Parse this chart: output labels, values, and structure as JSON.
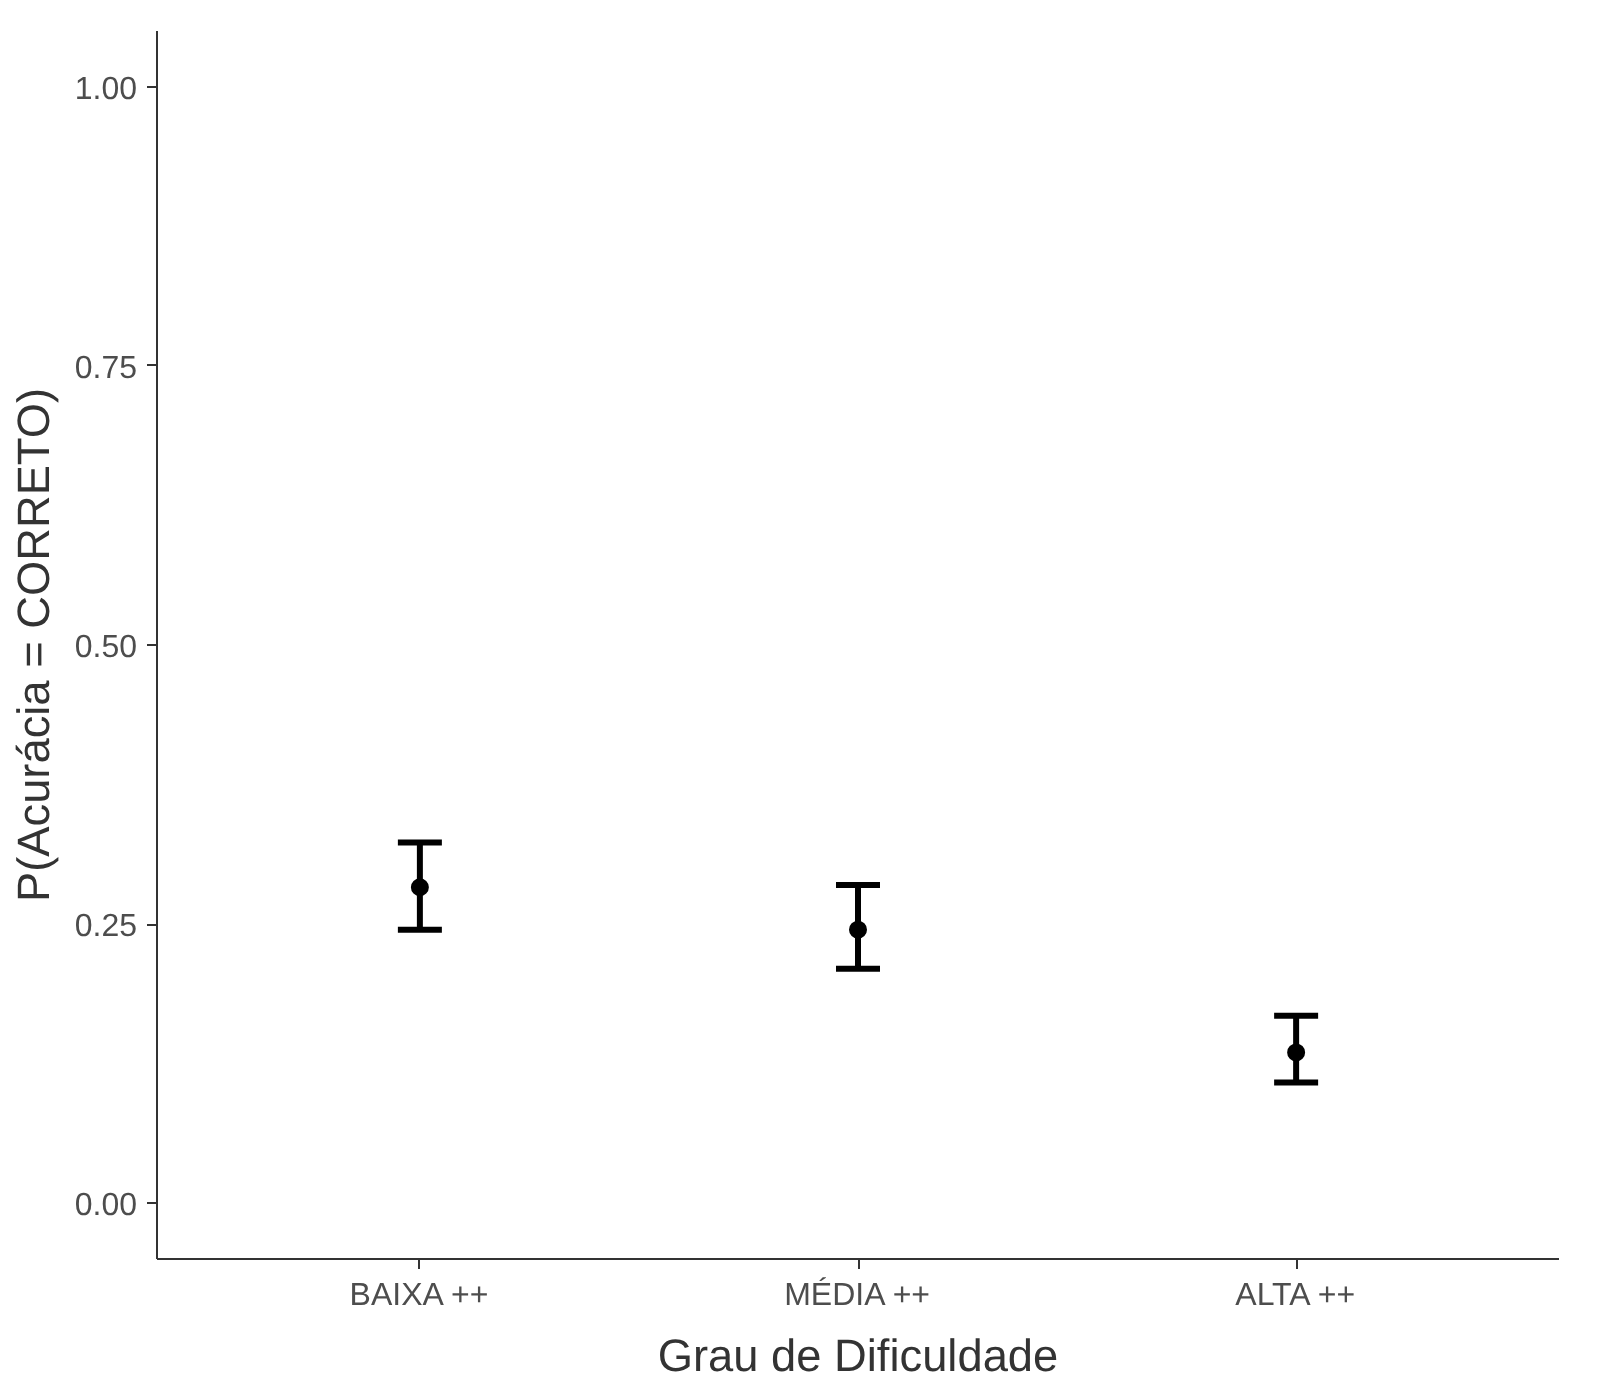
{
  "chart_data": {
    "type": "scatter",
    "xlabel": "Grau de Dificuldade",
    "ylabel": "P(Acurácia = CORRETO)",
    "categories": [
      "BAIXA ++",
      "MÉDIA ++",
      "ALTA ++"
    ],
    "series": [
      {
        "color": "#000000",
        "values": [
          0.283,
          0.245,
          0.135
        ],
        "errors": [
          [
            0.245,
            0.323
          ],
          [
            0.21,
            0.285
          ],
          [
            0.108,
            0.168
          ]
        ]
      }
    ],
    "ylim": [
      -0.05,
      1.05
    ],
    "yticks": [
      {
        "value": 0,
        "label": "0.00"
      },
      {
        "value": 0.25,
        "label": "0.25"
      },
      {
        "value": 0.5,
        "label": "0.50"
      },
      {
        "value": 0.75,
        "label": "0.75"
      },
      {
        "value": 1,
        "label": "1.00"
      }
    ],
    "grid": false,
    "marker": "circle"
  }
}
